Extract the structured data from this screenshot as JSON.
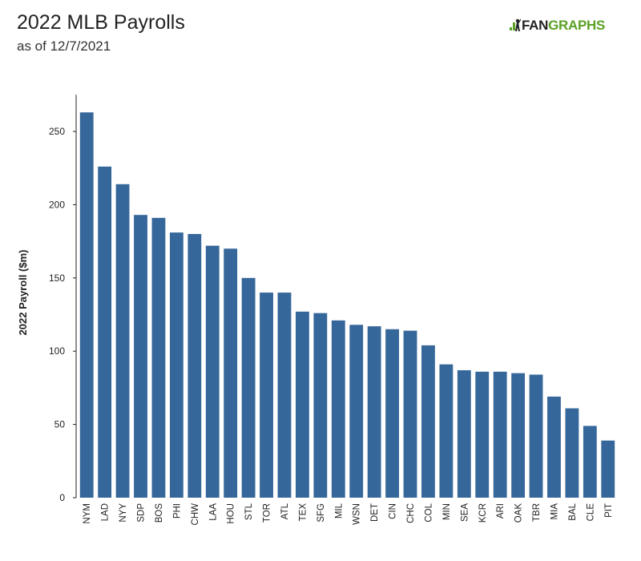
{
  "header": {
    "title": "2022 MLB Payrolls",
    "subtitle": "as of 12/7/2021",
    "logo_fan": "FAN",
    "logo_graphs": "GRAPHS"
  },
  "colors": {
    "bar": "#36679a",
    "logo_green": "#5aa125",
    "axis": "#222222"
  },
  "chart_data": {
    "type": "bar",
    "title": "2022 MLB Payrolls",
    "subtitle": "as of 12/7/2021",
    "xlabel": "",
    "ylabel": "2022 Payroll ($m)",
    "ylim": [
      0,
      275
    ],
    "yticks": [
      0,
      50,
      100,
      150,
      200,
      250
    ],
    "grid": false,
    "categories": [
      "NYM",
      "LAD",
      "NYY",
      "SDP",
      "BOS",
      "PHI",
      "CHW",
      "LAA",
      "HOU",
      "STL",
      "TOR",
      "ATL",
      "TEX",
      "SFG",
      "MIL",
      "WSN",
      "DET",
      "CIN",
      "CHC",
      "COL",
      "MIN",
      "SEA",
      "KCR",
      "ARI",
      "OAK",
      "TBR",
      "MIA",
      "BAL",
      "CLE",
      "PIT"
    ],
    "values": [
      263,
      226,
      214,
      193,
      191,
      181,
      180,
      172,
      170,
      150,
      140,
      140,
      127,
      126,
      121,
      118,
      117,
      115,
      114,
      104,
      91,
      87,
      86,
      86,
      85,
      84,
      69,
      61,
      49,
      39
    ]
  }
}
